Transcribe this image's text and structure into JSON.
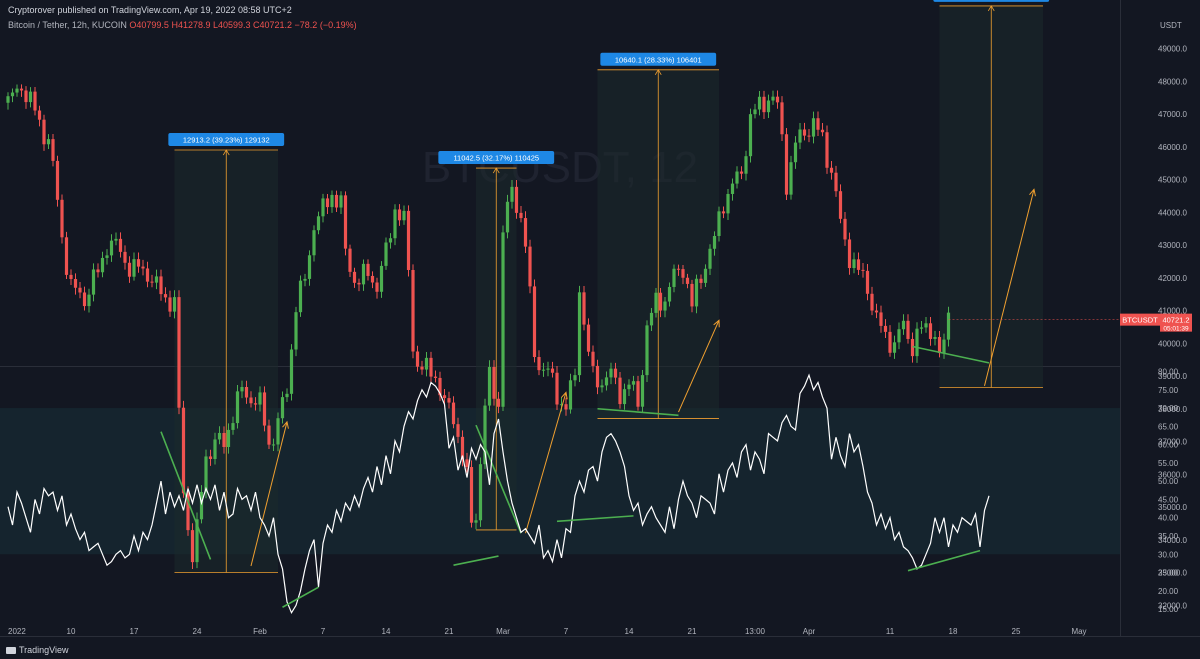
{
  "header": {
    "published": "Cryptorover published on TradingView.com, Apr 19, 2022 08:58 UTC+2",
    "symbol_line": "Bitcoin / Tether, 12h, KUCOIN",
    "ohlc": "O40799.5 H41278.9 L40599.3 C40721.2 −78.2 (−0.19%)"
  },
  "watermark": "BTCUSDT, 12",
  "footer": {
    "logo_text": "TradingView"
  },
  "chart_data": [
    {
      "type": "candlestick",
      "currency_label": "USDT",
      "ylim": [
        31500,
        50500
      ],
      "y_ticks": [
        32000,
        33000,
        34000,
        35000,
        36000,
        37000,
        38000,
        39000,
        40000,
        41000,
        42000,
        43000,
        44000,
        45000,
        46000,
        47000,
        48000,
        49000
      ],
      "last_price": {
        "symbol": "BTCUSDT",
        "value": "40721.2",
        "countdown": "05:01:39"
      },
      "x_ticks": [
        {
          "i": 0,
          "label": "2022"
        },
        {
          "i": 14,
          "label": "10"
        },
        {
          "i": 28,
          "label": "17"
        },
        {
          "i": 42,
          "label": "24"
        },
        {
          "i": 56,
          "label": "Feb"
        },
        {
          "i": 70,
          "label": "7"
        },
        {
          "i": 84,
          "label": "14"
        },
        {
          "i": 98,
          "label": "21"
        },
        {
          "i": 110,
          "label": "Mar"
        },
        {
          "i": 124,
          "label": "7"
        },
        {
          "i": 138,
          "label": "14"
        },
        {
          "i": 152,
          "label": "21"
        },
        {
          "i": 166,
          "label": "13:00"
        },
        {
          "i": 178,
          "label": "Apr"
        },
        {
          "i": 196,
          "label": "11"
        },
        {
          "i": 210,
          "label": "18"
        },
        {
          "i": 224,
          "label": "25"
        },
        {
          "i": 238,
          "label": "May"
        }
      ],
      "anchors": [
        [
          0,
          47400
        ],
        [
          3,
          47900
        ],
        [
          6,
          47000
        ],
        [
          9,
          46300
        ],
        [
          12,
          43200
        ],
        [
          14,
          41800
        ],
        [
          17,
          41300
        ],
        [
          20,
          42200
        ],
        [
          22,
          43100
        ],
        [
          26,
          42600
        ],
        [
          28,
          42300
        ],
        [
          31,
          42100
        ],
        [
          34,
          41600
        ],
        [
          37,
          41100
        ],
        [
          38,
          37800
        ],
        [
          39,
          35500
        ],
        [
          41,
          33600
        ],
        [
          42,
          34200
        ],
        [
          44,
          36500
        ],
        [
          46,
          37100
        ],
        [
          48,
          36900
        ],
        [
          50,
          37800
        ],
        [
          52,
          38600
        ],
        [
          54,
          38400
        ],
        [
          56,
          38000
        ],
        [
          58,
          37000
        ],
        [
          60,
          37600
        ],
        [
          62,
          38500
        ],
        [
          64,
          41200
        ],
        [
          66,
          42000
        ],
        [
          68,
          43600
        ],
        [
          70,
          44000
        ],
        [
          72,
          44700
        ],
        [
          74,
          44200
        ],
        [
          75,
          42600
        ],
        [
          77,
          42000
        ],
        [
          80,
          42100
        ],
        [
          82,
          41700
        ],
        [
          84,
          42800
        ],
        [
          86,
          44200
        ],
        [
          88,
          43600
        ],
        [
          89,
          42100
        ],
        [
          90,
          40000
        ],
        [
          91,
          39500
        ],
        [
          93,
          39100
        ],
        [
          95,
          39000
        ],
        [
          97,
          38200
        ],
        [
          99,
          37800
        ],
        [
          101,
          36500
        ],
        [
          102,
          35800
        ],
        [
          103,
          34600
        ],
        [
          104,
          34900
        ],
        [
          106,
          38000
        ],
        [
          107,
          38800
        ],
        [
          109,
          38200
        ],
        [
          110,
          43600
        ],
        [
          112,
          44600
        ],
        [
          114,
          43800
        ],
        [
          115,
          43000
        ],
        [
          117,
          39800
        ],
        [
          118,
          39400
        ],
        [
          120,
          39000
        ],
        [
          122,
          38500
        ],
        [
          124,
          38100
        ],
        [
          126,
          38900
        ],
        [
          127,
          41800
        ],
        [
          128,
          40600
        ],
        [
          130,
          39000
        ],
        [
          132,
          38800
        ],
        [
          134,
          39000
        ],
        [
          136,
          38600
        ],
        [
          138,
          38700
        ],
        [
          140,
          38100
        ],
        [
          142,
          40600
        ],
        [
          144,
          41200
        ],
        [
          146,
          41300
        ],
        [
          148,
          42100
        ],
        [
          150,
          42400
        ],
        [
          152,
          41000
        ],
        [
          153,
          41600
        ],
        [
          155,
          42600
        ],
        [
          157,
          43100
        ],
        [
          159,
          44300
        ],
        [
          161,
          44900
        ],
        [
          163,
          45200
        ],
        [
          165,
          46800
        ],
        [
          167,
          47300
        ],
        [
          169,
          47600
        ],
        [
          171,
          47100
        ],
        [
          172,
          46200
        ],
        [
          173,
          45000
        ],
        [
          175,
          46100
        ],
        [
          177,
          46400
        ],
        [
          179,
          46700
        ],
        [
          181,
          46300
        ],
        [
          183,
          45200
        ],
        [
          185,
          43600
        ],
        [
          187,
          42800
        ],
        [
          189,
          42100
        ],
        [
          191,
          41700
        ],
        [
          193,
          40800
        ],
        [
          195,
          40200
        ],
        [
          197,
          39900
        ],
        [
          199,
          40600
        ],
        [
          201,
          40000
        ],
        [
          203,
          40300
        ],
        [
          205,
          40500
        ],
        [
          206,
          40400
        ],
        [
          207,
          39500
        ],
        [
          208,
          40000
        ],
        [
          209,
          40800
        ]
      ],
      "annotations": [
        {
          "label": "12913.2 (39.23%) 129132",
          "i0": 37,
          "i1": 60,
          "y0": 33000,
          "y1": 45900
        },
        {
          "label": "11042.5 (32.17%) 110425",
          "i0": 104,
          "i1": 113,
          "y0": 34300,
          "y1": 45350
        },
        {
          "label": "10640.1 (28.33%) 106401",
          "i0": 131,
          "i1": 158,
          "y0": 37700,
          "y1": 48350
        },
        {
          "label": "11673.6 (30.29%) 116736",
          "i0": 207,
          "i1": 230,
          "y0": 38650,
          "y1": 50300
        }
      ]
    },
    {
      "type": "line",
      "ylim": [
        12.5,
        80.5
      ],
      "y_ticks": [
        15,
        20,
        25,
        30,
        35,
        40,
        45,
        50,
        55,
        60,
        65,
        70,
        75,
        80
      ],
      "band": [
        30,
        70
      ],
      "values": [
        43,
        38,
        47,
        44,
        40,
        36,
        45,
        41,
        48,
        46,
        47,
        42,
        46,
        38,
        41,
        37,
        34,
        36,
        31,
        32,
        33,
        30,
        27,
        28,
        30,
        31,
        29,
        30,
        35,
        31,
        36,
        34,
        38,
        44,
        50,
        41,
        47,
        43,
        46,
        42,
        48,
        44,
        49,
        44,
        48,
        45,
        49,
        42,
        47,
        40,
        41,
        48,
        45,
        46,
        42,
        47,
        40,
        38,
        35,
        40,
        30,
        26,
        17,
        14,
        16,
        20,
        26,
        31,
        34,
        21,
        33,
        38,
        36,
        42,
        39,
        44,
        42,
        46,
        43,
        48,
        51,
        47,
        54,
        49,
        57,
        52,
        61,
        58,
        65,
        69,
        67,
        72,
        75,
        73,
        77,
        76,
        74,
        71,
        59,
        62,
        53,
        57,
        51,
        59,
        56,
        60,
        58,
        49,
        63,
        67,
        58,
        50,
        44,
        40,
        36,
        37,
        35,
        33,
        38,
        29,
        31,
        28,
        34,
        29,
        37,
        36,
        46,
        50,
        47,
        53,
        54,
        50,
        58,
        62,
        63,
        61,
        58,
        54,
        46,
        42,
        44,
        38,
        41,
        43,
        40,
        38,
        36,
        43,
        37,
        45,
        50,
        46,
        44,
        40,
        46,
        45,
        44,
        41,
        52,
        47,
        53,
        55,
        51,
        58,
        60,
        53,
        58,
        56,
        52,
        63,
        62,
        61,
        66,
        68,
        65,
        64,
        74,
        76,
        79,
        75,
        77,
        73,
        70,
        56,
        62,
        57,
        54,
        63,
        58,
        60,
        54,
        47,
        44,
        38,
        41,
        37,
        40,
        34,
        36,
        32,
        31,
        29,
        26,
        27,
        30,
        33,
        40,
        36,
        40,
        32,
        38,
        36,
        40,
        39,
        38,
        41,
        32,
        42,
        46
      ]
    }
  ]
}
